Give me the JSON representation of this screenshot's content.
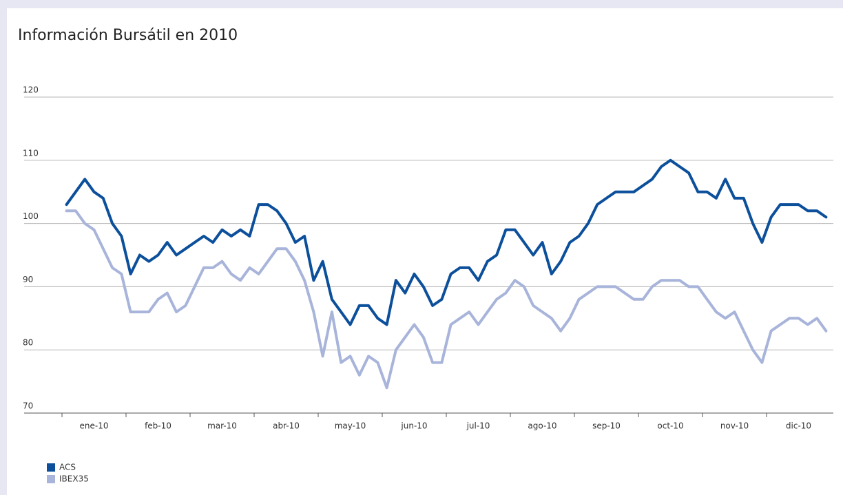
{
  "chart_data": {
    "type": "line",
    "title": "Información Bursátil en 2010",
    "categories": [
      null,
      null,
      null,
      "ene-10",
      null,
      null,
      null,
      null,
      null,
      null,
      "feb-10",
      null,
      null,
      null,
      null,
      null,
      null,
      "mar-10",
      null,
      null,
      null,
      null,
      null,
      null,
      "abr-10",
      null,
      null,
      null,
      null,
      null,
      null,
      "may-10",
      null,
      null,
      null,
      null,
      null,
      null,
      "jun-10",
      null,
      null,
      null,
      null,
      null,
      null,
      "jul-10",
      null,
      null,
      null,
      null,
      null,
      null,
      "ago-10",
      null,
      null,
      null,
      null,
      null,
      null,
      "sep-10",
      null,
      null,
      null,
      null,
      null,
      null,
      "oct-10",
      null,
      null,
      null,
      null,
      null,
      null,
      "nov-10",
      null,
      null,
      null,
      null,
      null,
      null,
      "dic-10",
      null,
      null,
      null
    ],
    "series": [
      {
        "name": "ACS",
        "color": "#0c4f9b",
        "values": [
          103,
          105,
          107,
          105,
          104,
          100,
          98,
          92,
          95,
          94,
          95,
          97,
          95,
          96,
          97,
          98,
          97,
          99,
          98,
          99,
          98,
          103,
          103,
          102,
          100,
          97,
          98,
          91,
          94,
          88,
          86,
          84,
          87,
          87,
          85,
          84,
          91,
          89,
          92,
          90,
          87,
          88,
          92,
          93,
          93,
          91,
          94,
          95,
          99,
          99,
          97,
          95,
          97,
          92,
          94,
          97,
          98,
          100,
          103,
          104,
          105,
          105,
          105,
          106,
          107,
          109,
          110,
          109,
          108,
          105,
          105,
          104,
          107,
          104,
          104,
          100,
          97,
          101,
          103,
          103,
          103,
          102,
          102,
          101
        ]
      },
      {
        "name": "IBEX35",
        "color": "#a8b4da",
        "values": [
          102,
          102,
          100,
          99,
          96,
          93,
          92,
          86,
          86,
          86,
          88,
          89,
          86,
          87,
          90,
          93,
          93,
          94,
          92,
          91,
          93,
          92,
          94,
          96,
          96,
          94,
          91,
          86,
          79,
          86,
          78,
          79,
          76,
          79,
          78,
          74,
          80,
          82,
          84,
          82,
          78,
          78,
          84,
          85,
          86,
          84,
          86,
          88,
          89,
          91,
          90,
          87,
          86,
          85,
          83,
          85,
          88,
          89,
          90,
          90,
          90,
          89,
          88,
          88,
          90,
          91,
          91,
          91,
          90,
          90,
          88,
          86,
          85,
          86,
          83,
          80,
          78,
          83,
          84,
          85,
          85,
          84,
          85,
          83
        ]
      }
    ],
    "ylim": [
      70,
      120
    ],
    "yticks": [
      70,
      80,
      90,
      100,
      110,
      120
    ],
    "grid": true,
    "legend": "bottom-left"
  }
}
